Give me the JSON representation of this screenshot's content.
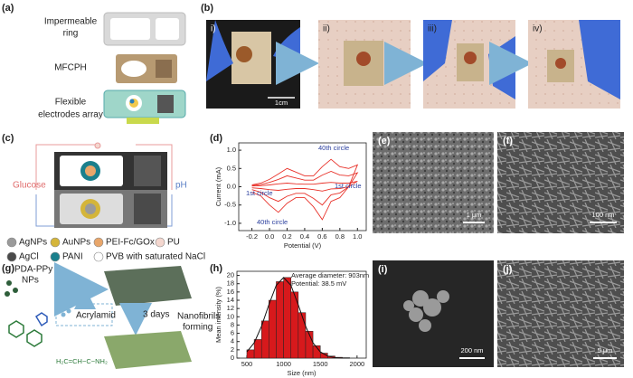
{
  "panel_a": {
    "label": "(a)",
    "layers": [
      [
        "Impermeable",
        "ring"
      ],
      [
        "MFCPH"
      ],
      [
        "Flexible",
        "electrodes array"
      ]
    ]
  },
  "panel_b": {
    "label": "(b)",
    "steps": [
      "i)",
      "ii)",
      "iii)",
      "iv)"
    ],
    "scale_bar": "1cm"
  },
  "panel_c": {
    "label": "(c)",
    "left_label": "Glucose",
    "right_label": "pH",
    "legend": [
      {
        "text": "AgNPs",
        "color": "#9a9a9a"
      },
      {
        "text": "AuNPs",
        "color": "#d4b53a"
      },
      {
        "text": "PEI-Fc/GOx",
        "color": "#e8a66a"
      },
      {
        "text": "PU",
        "color": "#f4d7cf"
      },
      {
        "text": "AgCl",
        "color": "#4a4a4a"
      },
      {
        "text": "PANI",
        "color": "#1a7f8c"
      },
      {
        "text": "PVB with saturated NaCl",
        "color": "#ffffff"
      }
    ]
  },
  "panel_d": {
    "label": "(d)",
    "chart_data": {
      "type": "line",
      "x_label": "Potential (V)",
      "y_label": "Current (mA)",
      "x": [
        -0.2,
        -0.1,
        0,
        0.1,
        0.2,
        0.3,
        0.4,
        0.5,
        0.6,
        0.7,
        0.8,
        0.9,
        1.0,
        0.9,
        0.8,
        0.7,
        0.6,
        0.5,
        0.4,
        0.3,
        0.2,
        0.1,
        0,
        -0.1,
        -0.2
      ],
      "series": [
        {
          "color": "#e8322a",
          "values": [
            0.02,
            0.03,
            0.05,
            0.08,
            0.1,
            0.08,
            0.07,
            0.07,
            0.1,
            0.12,
            0.1,
            0.1,
            0.15,
            0.0,
            -0.05,
            -0.06,
            -0.12,
            -0.08,
            -0.05,
            -0.05,
            -0.07,
            -0.1,
            -0.08,
            -0.05,
            -0.03
          ]
        },
        {
          "color": "#e8322a",
          "values": [
            0.03,
            0.06,
            0.12,
            0.2,
            0.3,
            0.24,
            0.18,
            0.18,
            0.32,
            0.42,
            0.32,
            0.3,
            0.38,
            0.0,
            -0.17,
            -0.22,
            -0.5,
            -0.32,
            -0.18,
            -0.18,
            -0.26,
            -0.4,
            -0.3,
            -0.15,
            -0.08
          ]
        },
        {
          "color": "#e8322a",
          "values": [
            0.05,
            0.1,
            0.2,
            0.35,
            0.5,
            0.4,
            0.3,
            0.3,
            0.55,
            0.75,
            0.55,
            0.5,
            0.6,
            0.0,
            -0.3,
            -0.4,
            -0.9,
            -0.55,
            -0.3,
            -0.3,
            -0.45,
            -0.7,
            -0.5,
            -0.25,
            -0.15
          ]
        }
      ],
      "xlim": [
        -0.35,
        1.1
      ],
      "ylim": [
        -1.2,
        1.2
      ],
      "xticks": [
        -0.2,
        {
          "value": 0,
          "label": "0.0"
        },
        0.2,
        0.4,
        0.6,
        0.8,
        {
          "value": 1,
          "label": "1.0"
        }
      ],
      "yticks": [
        {
          "value": -1,
          "label": "-1.0"
        },
        -0.5,
        {
          "value": 0,
          "label": "0.0"
        },
        0.5,
        {
          "value": 1,
          "label": "1.0"
        }
      ],
      "annotations": [
        "40th circle",
        "1st circle",
        "1st circle",
        "40th circle"
      ]
    }
  },
  "panel_e": {
    "label": "(e)",
    "scale_bar": "1 μm"
  },
  "panel_f": {
    "label": "(f)",
    "scale_bar": "100 nm"
  },
  "panel_g": {
    "label": "(g)",
    "particles": [
      "PDA-PPy",
      "NPs"
    ],
    "monomer": "Acrylamid",
    "time": "3 days",
    "process": [
      "Nanofibrils",
      "forming"
    ],
    "formula": "H₂C=CH−C−NH₂"
  },
  "panel_h": {
    "label": "(h)",
    "chart_data": {
      "type": "histogram",
      "x_label": "Size (nm)",
      "y_label": "Mean intensity (%)",
      "bins": [
        500,
        600,
        700,
        800,
        900,
        1000,
        1100,
        1200,
        1300,
        1400,
        1500,
        1600,
        1700,
        1800,
        1900
      ],
      "values": [
        2,
        4.5,
        9,
        14,
        18.5,
        19.5,
        16,
        11,
        6.5,
        3,
        1.2,
        0.5,
        0.2,
        0.1
      ],
      "color": "#d7191c",
      "fit": {
        "x": [
          500,
          600,
          700,
          800,
          900,
          1000,
          1100,
          1200,
          1300,
          1400,
          1500,
          1600,
          1700,
          1800,
          1900
        ],
        "values": [
          1.5,
          3.7,
          7.7,
          12.9,
          17.6,
          19.5,
          17.6,
          12.9,
          7.7,
          3.7,
          1.5,
          0.5,
          0.1,
          0,
          0
        ]
      },
      "xlim": [
        365,
        2125
      ],
      "ylim": [
        0,
        21
      ],
      "xticks": [
        500,
        1000,
        1500,
        2000
      ],
      "yticks": [
        0,
        2,
        4,
        6,
        8,
        10,
        12,
        14,
        16,
        18,
        20
      ],
      "annotations": [
        "Average diameter: 903nm",
        "Potential: 38.5 mV"
      ]
    }
  },
  "panel_i": {
    "label": "(i)",
    "scale_bar": "200 nm"
  },
  "panel_j": {
    "label": "(j)",
    "scale_bar": "5 μm"
  }
}
